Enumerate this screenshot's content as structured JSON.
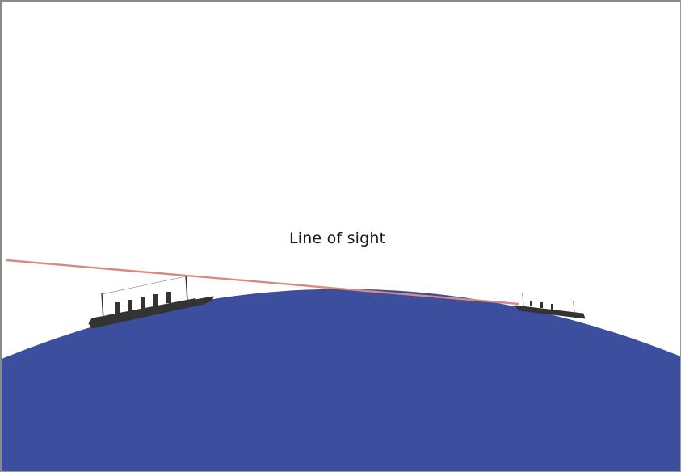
{
  "diagram": {
    "label": "Line of sight",
    "colors": {
      "earth": "#3b4f9e",
      "line_of_sight": "#d98a80",
      "ship": "#333333",
      "background": "#ffffff"
    },
    "elements": {
      "earth": "curved-earth-surface",
      "near_ship": "ship-icon",
      "far_ship": "ship-icon"
    }
  }
}
